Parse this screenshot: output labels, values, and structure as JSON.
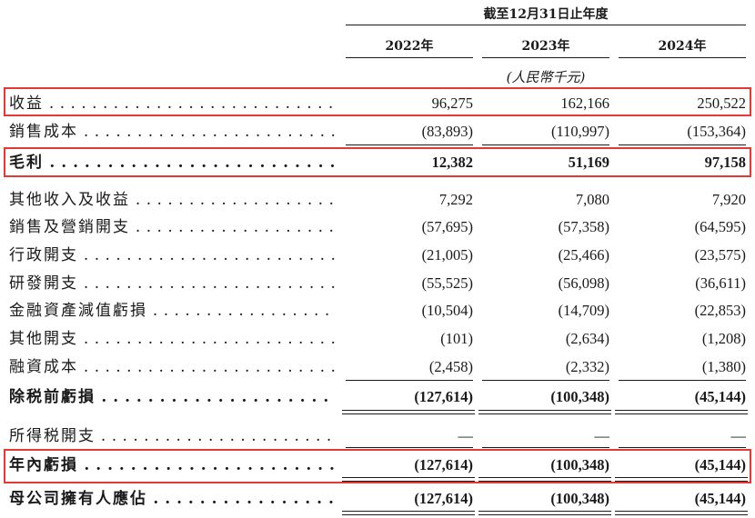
{
  "header": {
    "period": "截至12月31日止年度",
    "years": [
      "2022年",
      "2023年",
      "2024年"
    ],
    "unit": "(人民幣千元)"
  },
  "rows": [
    {
      "label": "收益",
      "values": [
        "96,275",
        "162,166",
        "250,522"
      ]
    },
    {
      "label": "銷售成本",
      "values": [
        "(83,893)",
        "(110,997)",
        "(153,364)"
      ]
    },
    {
      "label": "毛利",
      "values": [
        "12,382",
        "51,169",
        "97,158"
      ]
    },
    {
      "label": "其他收入及收益",
      "values": [
        "7,292",
        "7,080",
        "7,920"
      ]
    },
    {
      "label": "銷售及營銷開支",
      "values": [
        "(57,695)",
        "(57,358)",
        "(64,595)"
      ]
    },
    {
      "label": "行政開支",
      "values": [
        "(21,005)",
        "(25,466)",
        "(23,575)"
      ]
    },
    {
      "label": "研發開支",
      "values": [
        "(55,525)",
        "(56,098)",
        "(36,611)"
      ]
    },
    {
      "label": "金融資產減值虧損",
      "values": [
        "(10,504)",
        "(14,709)",
        "(22,853)"
      ]
    },
    {
      "label": "其他開支",
      "values": [
        "(101)",
        "(2,634)",
        "(1,208)"
      ]
    },
    {
      "label": "融資成本",
      "values": [
        "(2,458)",
        "(2,332)",
        "(1,380)"
      ]
    },
    {
      "label": "除税前虧損",
      "values": [
        "(127,614)",
        "(100,348)",
        "(45,144)"
      ]
    },
    {
      "label": "所得税開支",
      "values": [
        "—",
        "—",
        "—"
      ]
    },
    {
      "label": "年內虧損",
      "values": [
        "(127,614)",
        "(100,348)",
        "(45,144)"
      ]
    },
    {
      "label": "母公司擁有人應佔",
      "values": [
        "(127,614)",
        "(100,348)",
        "(45,144)"
      ]
    }
  ]
}
